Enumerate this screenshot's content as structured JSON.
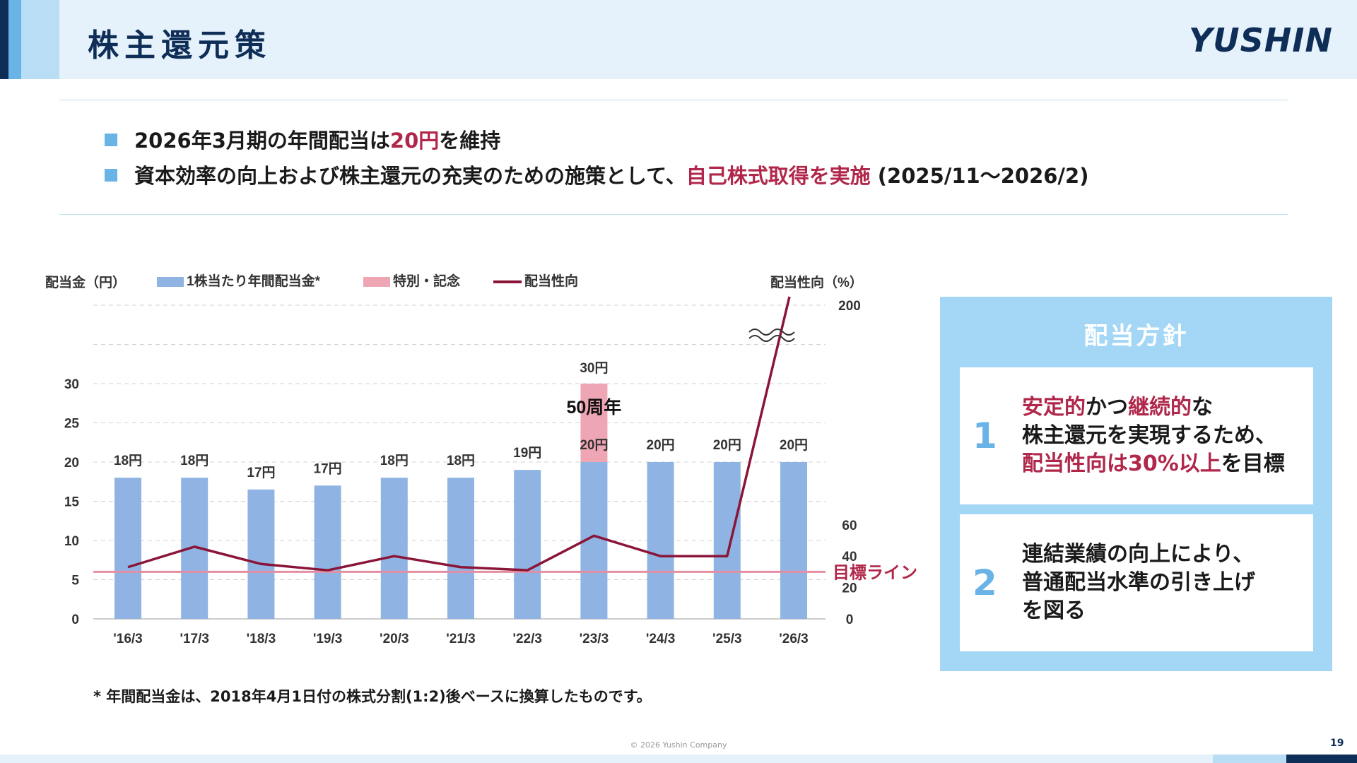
{
  "header": {
    "title": "株主還元策",
    "logo": "YUSHIN"
  },
  "bullets": [
    {
      "before": "2026年3月期の年間配当は",
      "highlight": "20円",
      "after": "を維持"
    },
    {
      "before": "資本効率の向上および株主還元の充実のための施策として、",
      "highlight": "自己株式取得を実施",
      "after": " (2025/11～2026/2)"
    }
  ],
  "chart_data": {
    "type": "bar",
    "left_axis_title": "配当金（円）",
    "right_axis_title": "配当性向（%）",
    "categories": [
      "'16/3",
      "'17/3",
      "'18/3",
      "'19/3",
      "'20/3",
      "'21/3",
      "'22/3",
      "'23/3",
      "'24/3",
      "'25/3",
      "'26/3"
    ],
    "series": [
      {
        "name": "1株当たり年間配当金*",
        "values": [
          18,
          18,
          16.5,
          17,
          18,
          18,
          19,
          20,
          20,
          20,
          20
        ],
        "color": "#8fb4e3"
      },
      {
        "name": "特別・記念",
        "values": [
          0,
          0,
          0,
          0,
          0,
          0,
          0,
          10,
          0,
          0,
          0
        ],
        "color": "#eea5b4"
      },
      {
        "name": "配当性向",
        "values": [
          33,
          46,
          35,
          31,
          40,
          33,
          31,
          53,
          40,
          40,
          205
        ],
        "color": "#8a1538",
        "axis": "right"
      }
    ],
    "bar_labels": [
      "18円",
      "18円",
      "17円",
      "17円",
      "18円",
      "18円",
      "19円",
      "20円",
      "20円",
      "20円",
      "20円"
    ],
    "special_label": "30円",
    "anniversary_label": "50周年",
    "target_label": "目標ライン",
    "target_value": 30,
    "left_ticks": [
      "0",
      "5",
      "10",
      "15",
      "20",
      "25",
      "30"
    ],
    "right_ticks": [
      "0",
      "20",
      "40",
      "60",
      "200"
    ],
    "ylim_left": [
      0,
      40
    ],
    "axis_break": true
  },
  "footnote": "* 年間配当金は、2018年4月1日付の株式分割(1:2)後ベースに換算したものです。",
  "policy": {
    "title": "配当方針",
    "items": [
      {
        "num": "1",
        "lines": [
          [
            {
              "t": "安定的",
              "red": true
            },
            {
              "t": "かつ"
            },
            {
              "t": "継続的",
              "red": true
            },
            {
              "t": "な"
            }
          ],
          [
            {
              "t": "株主還元を実現するため、"
            }
          ],
          [
            {
              "t": "配当性向は30%以上",
              "red": true
            },
            {
              "t": "を目標"
            }
          ]
        ]
      },
      {
        "num": "2",
        "lines": [
          [
            {
              "t": "連結業績の向上により、"
            }
          ],
          [
            {
              "t": "普通配当水準の引き上げ"
            }
          ],
          [
            {
              "t": "を図る"
            }
          ]
        ]
      }
    ]
  },
  "footer": {
    "copyright": "© 2026 Yushin Company",
    "page": "19"
  }
}
